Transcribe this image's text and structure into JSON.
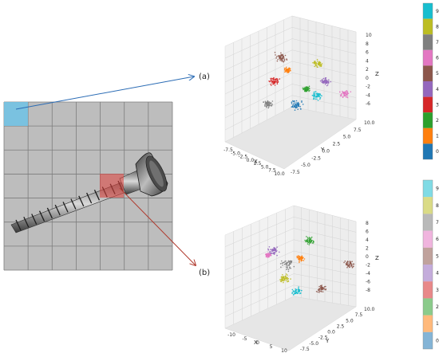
{
  "labels": {
    "a": "(a)",
    "b": "(b)"
  },
  "colors": {
    "class": [
      "#1f77b4",
      "#ff7f0e",
      "#2ca02c",
      "#d62728",
      "#9467bd",
      "#8c564b",
      "#e377c2",
      "#7f7f7f",
      "#bcbd22",
      "#17becf"
    ],
    "patch_a": "#6ec3e6",
    "patch_b": "#e0403a",
    "arrow_a": "#2b6cb5",
    "arrow_b": "#b03a2e"
  },
  "colorbar": {
    "ticks": [
      "0",
      "1",
      "2",
      "3",
      "4",
      "5",
      "6",
      "7",
      "8",
      "9"
    ]
  },
  "plot_a": {
    "x_ticks": [
      "-7.5",
      "-5.0",
      "-2.5",
      "0.0",
      "2.5",
      "5.0",
      "7.5",
      "10.0"
    ],
    "y_ticks": [
      "10.0",
      "7.5",
      "5.0",
      "2.5",
      "0.0",
      "-2.5",
      "-5.0",
      "-7.5"
    ],
    "z_ticks": [
      "10",
      "8",
      "6",
      "4",
      "2",
      "0",
      "-2",
      "-4",
      "-6"
    ],
    "x_label": "X",
    "y_label": "Y",
    "z_label": "Z"
  },
  "plot_b": {
    "x_ticks": [
      "-10",
      "-5",
      "0",
      "5",
      "10"
    ],
    "y_ticks": [
      "10.0",
      "7.5",
      "5.0",
      "2.5",
      "0.0",
      "-2.5",
      "-5.0",
      "-7.5"
    ],
    "z_ticks": [
      "8",
      "6",
      "4",
      "2",
      "0",
      "-2",
      "-4",
      "-6",
      "-8"
    ],
    "x_label": "X",
    "y_label": "Y",
    "z_label": "Z"
  }
}
